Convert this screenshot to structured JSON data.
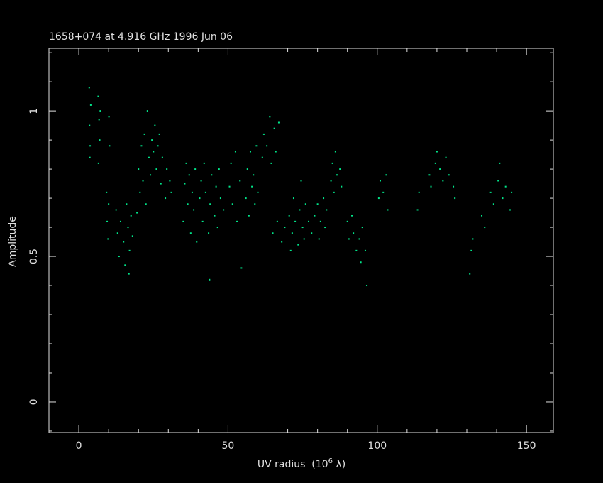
{
  "chart_data": {
    "type": "scatter",
    "title": "1658+074 at 4.916 GHz 1996 Jun 06",
    "x_label": {
      "text": "UV radius  (10",
      "exponent": "6",
      "unit": " λ)"
    },
    "y_label": "Amplitude",
    "color": "#00e68a",
    "xlim": [
      -10,
      159
    ],
    "ylim": [
      -0.105,
      1.215
    ],
    "xticks": [
      0,
      50,
      100,
      150
    ],
    "yticks": [
      0,
      0.5,
      1
    ],
    "xminor_ticks": [
      -10,
      10,
      20,
      30,
      40,
      60,
      70,
      80,
      90,
      110,
      120,
      130,
      140
    ],
    "yminor_ticks": [
      -0.1,
      0.1,
      0.2,
      0.3,
      0.4,
      0.6,
      0.7,
      0.8,
      0.9,
      1.1,
      1.2
    ],
    "x": [
      3.5,
      3.6,
      3.8,
      4.0,
      3.7,
      6.5,
      6.8,
      7.0,
      6.6,
      7.2,
      9.3,
      9.5,
      9.8,
      10.1,
      10.3,
      10.0,
      12.5,
      13.0,
      13.5,
      14.0,
      15.0,
      15.5,
      16.0,
      16.5,
      17.0,
      17.5,
      18.0,
      16.8,
      19.5,
      20.0,
      20.5,
      21.0,
      21.5,
      22.0,
      22.5,
      23.0,
      23.5,
      24.0,
      24.5,
      25.0,
      25.5,
      26.0,
      26.5,
      27.0,
      27.5,
      28.0,
      29.0,
      29.5,
      30.5,
      31.0,
      35.0,
      35.5,
      36.0,
      36.5,
      37.0,
      37.5,
      38.0,
      38.5,
      39.0,
      39.5,
      40.5,
      41.0,
      41.5,
      42.0,
      42.5,
      43.5,
      44.0,
      44.5,
      43.8,
      45.5,
      46.0,
      46.5,
      47.0,
      47.5,
      48.5,
      50.5,
      51.0,
      51.5,
      52.5,
      53.0,
      54.0,
      54.5,
      56.0,
      56.5,
      57.0,
      57.5,
      58.0,
      58.5,
      59.0,
      59.5,
      60.0,
      61.5,
      62.0,
      63.0,
      64.0,
      64.5,
      65.5,
      66.0,
      67.0,
      65.0,
      66.5,
      68.0,
      69.0,
      70.5,
      71.0,
      71.5,
      72.0,
      72.5,
      73.5,
      74.0,
      74.5,
      75.0,
      75.5,
      76.0,
      77.0,
      78.0,
      79.0,
      80.0,
      80.5,
      81.0,
      82.0,
      82.5,
      83.0,
      84.5,
      85.0,
      85.5,
      86.0,
      86.5,
      87.5,
      88.0,
      90.0,
      90.5,
      91.5,
      92.0,
      93.0,
      94.0,
      94.5,
      95.0,
      96.0,
      96.5,
      100.5,
      101.0,
      102.0,
      103.0,
      103.5,
      113.5,
      114.0,
      117.5,
      118.0,
      119.5,
      120.0,
      121.0,
      122.0,
      123.0,
      124.0,
      125.5,
      126.0,
      131.0,
      131.5,
      132.0,
      135.0,
      136.0,
      138.0,
      139.0,
      140.5,
      141.0,
      142.0,
      143.0,
      144.5,
      145.0
    ],
    "values": [
      1.08,
      0.95,
      0.88,
      1.02,
      0.84,
      1.05,
      0.97,
      0.9,
      0.82,
      1.0,
      0.72,
      0.62,
      0.56,
      0.98,
      0.88,
      0.68,
      0.66,
      0.58,
      0.5,
      0.62,
      0.55,
      0.47,
      0.68,
      0.6,
      0.52,
      0.64,
      0.57,
      0.44,
      0.65,
      0.8,
      0.72,
      0.88,
      0.76,
      0.92,
      0.68,
      1.0,
      0.84,
      0.78,
      0.9,
      0.86,
      0.95,
      0.8,
      0.88,
      0.92,
      0.75,
      0.84,
      0.7,
      0.8,
      0.76,
      0.72,
      0.62,
      0.75,
      0.82,
      0.68,
      0.78,
      0.58,
      0.72,
      0.66,
      0.8,
      0.55,
      0.7,
      0.76,
      0.62,
      0.82,
      0.72,
      0.58,
      0.68,
      0.78,
      0.42,
      0.64,
      0.74,
      0.6,
      0.8,
      0.7,
      0.66,
      0.74,
      0.82,
      0.68,
      0.86,
      0.62,
      0.76,
      0.46,
      0.7,
      0.8,
      0.64,
      0.86,
      0.74,
      0.78,
      0.68,
      0.88,
      0.72,
      0.84,
      0.92,
      0.88,
      0.98,
      0.82,
      0.94,
      0.86,
      0.96,
      0.58,
      0.62,
      0.55,
      0.6,
      0.64,
      0.52,
      0.58,
      0.7,
      0.62,
      0.54,
      0.66,
      0.76,
      0.6,
      0.56,
      0.68,
      0.62,
      0.58,
      0.64,
      0.68,
      0.56,
      0.62,
      0.7,
      0.6,
      0.66,
      0.76,
      0.82,
      0.72,
      0.86,
      0.78,
      0.8,
      0.74,
      0.62,
      0.56,
      0.64,
      0.58,
      0.52,
      0.56,
      0.48,
      0.6,
      0.52,
      0.4,
      0.7,
      0.76,
      0.72,
      0.78,
      0.66,
      0.66,
      0.72,
      0.78,
      0.74,
      0.82,
      0.86,
      0.8,
      0.76,
      0.84,
      0.78,
      0.74,
      0.7,
      0.44,
      0.52,
      0.56,
      0.64,
      0.6,
      0.72,
      0.68,
      0.76,
      0.82,
      0.7,
      0.74,
      0.66,
      0.72
    ]
  }
}
